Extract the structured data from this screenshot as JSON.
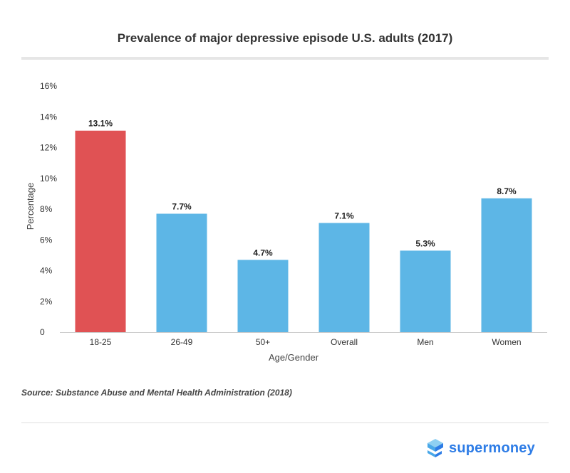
{
  "chart_data": {
    "type": "bar",
    "title": "Prevalence of major depressive episode U.S. adults (2017)",
    "xlabel": "Age/Gender",
    "ylabel": "Percentage",
    "categories": [
      "18-25",
      "26-49",
      "50+",
      "Overall",
      "Men",
      "Women"
    ],
    "values": [
      13.1,
      7.7,
      4.7,
      7.1,
      5.3,
      8.7
    ],
    "data_labels": [
      "13.1%",
      "7.7%",
      "4.7%",
      "7.1%",
      "5.3%",
      "8.7%"
    ],
    "ylim": [
      0,
      16
    ],
    "yticks": [
      0,
      2,
      4,
      6,
      8,
      10,
      12,
      14,
      16
    ],
    "ytick_labels": [
      "0",
      "2%",
      "4%",
      "6%",
      "8%",
      "10%",
      "12%",
      "14%",
      "16%"
    ],
    "bar_colors": [
      "#e05254",
      "#5db6e6",
      "#5db6e6",
      "#5db6e6",
      "#5db6e6",
      "#5db6e6"
    ],
    "grid": false,
    "legend": "none"
  },
  "source": "Source: Substance Abuse and Mental Health Administration (2018)",
  "brand": {
    "name": "supermoney",
    "icon": "supermoney-cube-icon",
    "color": "#2d7ce6"
  }
}
